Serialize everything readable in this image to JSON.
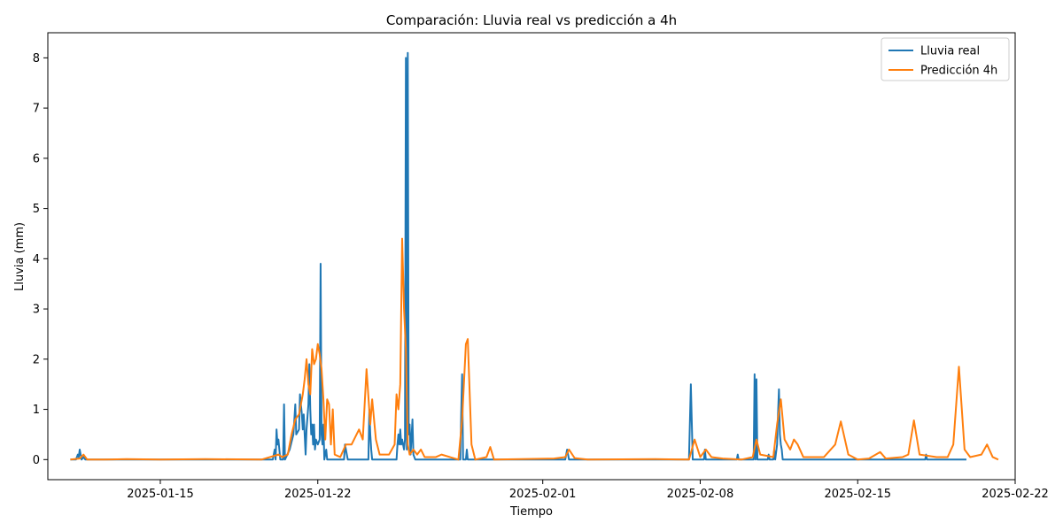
{
  "chart_data": {
    "type": "line",
    "title": "Comparación: Lluvia real vs predicción a 4h",
    "xlabel": "Tiempo",
    "ylabel": "Lluvia (mm)",
    "xlim": [
      "2025-01-10",
      "2025-02-22"
    ],
    "ylim": [
      -0.4,
      8.5
    ],
    "x_ticks": [
      "2025-01-15",
      "2025-01-22",
      "2025-02-01",
      "2025-02-08",
      "2025-02-15",
      "2025-02-22"
    ],
    "y_ticks": [
      0,
      1,
      2,
      3,
      4,
      5,
      6,
      7,
      8
    ],
    "grid": false,
    "legend_position": "top-right",
    "series": [
      {
        "name": "Lluvia real",
        "color": "#1f77b4",
        "points": [
          [
            "2025-01-11 00:00",
            0
          ],
          [
            "2025-01-11 06:00",
            0
          ],
          [
            "2025-01-11 08:00",
            0.1
          ],
          [
            "2025-01-11 09:00",
            0.05
          ],
          [
            "2025-01-11 10:00",
            0.2
          ],
          [
            "2025-01-11 12:00",
            0
          ],
          [
            "2025-01-11 14:00",
            0.05
          ],
          [
            "2025-01-11 16:00",
            0
          ],
          [
            "2025-01-20 00:00",
            0
          ],
          [
            "2025-01-20 02:00",
            0.2
          ],
          [
            "2025-01-20 03:00",
            0
          ],
          [
            "2025-01-20 04:00",
            0.6
          ],
          [
            "2025-01-20 05:00",
            0.3
          ],
          [
            "2025-01-20 06:00",
            0.4
          ],
          [
            "2025-01-20 08:00",
            0
          ],
          [
            "2025-01-20 11:00",
            0
          ],
          [
            "2025-01-20 12:00",
            1.1
          ],
          [
            "2025-01-20 13:00",
            0
          ],
          [
            "2025-01-20 18:00",
            0.2
          ],
          [
            "2025-01-20 22:00",
            0.5
          ],
          [
            "2025-01-21 00:00",
            1.1
          ],
          [
            "2025-01-21 01:00",
            0.5
          ],
          [
            "2025-01-21 04:00",
            0.6
          ],
          [
            "2025-01-21 05:00",
            1.3
          ],
          [
            "2025-01-21 07:00",
            0.9
          ],
          [
            "2025-01-21 08:00",
            0.6
          ],
          [
            "2025-01-21 09:00",
            0.9
          ],
          [
            "2025-01-21 10:00",
            0.5
          ],
          [
            "2025-01-21 11:00",
            0.1
          ],
          [
            "2025-01-21 12:00",
            0.6
          ],
          [
            "2025-01-21 14:00",
            1.1
          ],
          [
            "2025-01-21 15:00",
            1.9
          ],
          [
            "2025-01-21 16:00",
            1.0
          ],
          [
            "2025-01-21 17:00",
            0.5
          ],
          [
            "2025-01-21 18:00",
            0.7
          ],
          [
            "2025-01-21 19:00",
            0.3
          ],
          [
            "2025-01-21 20:00",
            0.7
          ],
          [
            "2025-01-21 21:00",
            0.2
          ],
          [
            "2025-01-21 22:00",
            0.4
          ],
          [
            "2025-01-22 00:00",
            0.3
          ],
          [
            "2025-01-22 02:00",
            0.4
          ],
          [
            "2025-01-22 03:00",
            3.9
          ],
          [
            "2025-01-22 04:00",
            0.5
          ],
          [
            "2025-01-22 05:00",
            0.3
          ],
          [
            "2025-01-22 06:00",
            0.7
          ],
          [
            "2025-01-22 07:00",
            0
          ],
          [
            "2025-01-22 09:00",
            0.2
          ],
          [
            "2025-01-22 10:00",
            0
          ],
          [
            "2025-01-23 04:00",
            0
          ],
          [
            "2025-01-23 05:00",
            0.3
          ],
          [
            "2025-01-23 06:00",
            0.2
          ],
          [
            "2025-01-23 07:00",
            0.1
          ],
          [
            "2025-01-23 08:00",
            0
          ],
          [
            "2025-01-24 06:00",
            0
          ],
          [
            "2025-01-24 07:00",
            1.0
          ],
          [
            "2025-01-24 08:00",
            0.5
          ],
          [
            "2025-01-24 09:00",
            0.2
          ],
          [
            "2025-01-24 10:00",
            0
          ],
          [
            "2025-01-25 12:00",
            0
          ],
          [
            "2025-01-25 13:00",
            0.3
          ],
          [
            "2025-01-25 14:00",
            0.5
          ],
          [
            "2025-01-25 15:00",
            0.3
          ],
          [
            "2025-01-25 16:00",
            0.6
          ],
          [
            "2025-01-25 17:00",
            0.3
          ],
          [
            "2025-01-25 18:00",
            0.4
          ],
          [
            "2025-01-25 19:00",
            0.3
          ],
          [
            "2025-01-25 20:00",
            0.2
          ],
          [
            "2025-01-25 21:00",
            0.4
          ],
          [
            "2025-01-25 22:00",
            8.0
          ],
          [
            "2025-01-25 23:00",
            0.2
          ],
          [
            "2025-01-26 00:00",
            8.1
          ],
          [
            "2025-01-26 01:00",
            0.5
          ],
          [
            "2025-01-26 02:00",
            0.7
          ],
          [
            "2025-01-26 03:00",
            0.1
          ],
          [
            "2025-01-26 05:00",
            0.8
          ],
          [
            "2025-01-26 06:00",
            0.1
          ],
          [
            "2025-01-26 08:00",
            0
          ],
          [
            "2025-01-28 08:00",
            0
          ],
          [
            "2025-01-28 09:00",
            0.9
          ],
          [
            "2025-01-28 10:00",
            1.7
          ],
          [
            "2025-01-28 11:00",
            0
          ],
          [
            "2025-01-28 14:00",
            0
          ],
          [
            "2025-01-28 15:00",
            0.2
          ],
          [
            "2025-01-28 16:00",
            0
          ],
          [
            "2025-02-02 00:00",
            0
          ],
          [
            "2025-02-02 02:00",
            0.2
          ],
          [
            "2025-02-02 04:00",
            0
          ],
          [
            "2025-02-07 12:00",
            0
          ],
          [
            "2025-02-07 14:00",
            1.5
          ],
          [
            "2025-02-07 16:00",
            0
          ],
          [
            "2025-02-08 04:00",
            0
          ],
          [
            "2025-02-08 05:00",
            0.2
          ],
          [
            "2025-02-08 06:00",
            0
          ],
          [
            "2025-02-09 15:00",
            0
          ],
          [
            "2025-02-09 16:00",
            0.1
          ],
          [
            "2025-02-09 17:00",
            0
          ],
          [
            "2025-02-10 09:00",
            0
          ],
          [
            "2025-02-10 10:00",
            1.7
          ],
          [
            "2025-02-10 11:00",
            0
          ],
          [
            "2025-02-10 12:00",
            1.6
          ],
          [
            "2025-02-10 13:00",
            0
          ],
          [
            "2025-02-11 00:00",
            0
          ],
          [
            "2025-02-11 01:00",
            0.1
          ],
          [
            "2025-02-11 02:00",
            0
          ],
          [
            "2025-02-11 06:00",
            0
          ],
          [
            "2025-02-11 07:00",
            0.2
          ],
          [
            "2025-02-11 08:00",
            0
          ],
          [
            "2025-02-11 10:00",
            0.3
          ],
          [
            "2025-02-11 11:00",
            0.9
          ],
          [
            "2025-02-11 12:00",
            1.4
          ],
          [
            "2025-02-11 13:00",
            0.5
          ],
          [
            "2025-02-11 14:00",
            0.3
          ],
          [
            "2025-02-11 15:00",
            0.2
          ],
          [
            "2025-02-11 16:00",
            0
          ],
          [
            "2025-02-18 00:00",
            0
          ],
          [
            "2025-02-18 01:00",
            0.1
          ],
          [
            "2025-02-18 02:00",
            0
          ],
          [
            "2025-02-19 19:00",
            0
          ],
          [
            "2025-02-19 20:00",
            0
          ]
        ]
      },
      {
        "name": "Predicción 4h",
        "color": "#ff7f0e",
        "points": [
          [
            "2025-01-11 00:00",
            0
          ],
          [
            "2025-01-11 10:00",
            0.02
          ],
          [
            "2025-01-11 14:00",
            0.1
          ],
          [
            "2025-01-11 18:00",
            0
          ],
          [
            "2025-01-12 12:00",
            0
          ],
          [
            "2025-01-13 12:00",
            0.01
          ],
          [
            "2025-01-15 00:00",
            0
          ],
          [
            "2025-01-17 00:00",
            0.01
          ],
          [
            "2025-01-19 12:00",
            0
          ],
          [
            "2025-01-20 06:00",
            0.1
          ],
          [
            "2025-01-20 10:00",
            0.05
          ],
          [
            "2025-01-20 16:00",
            0.1
          ],
          [
            "2025-01-20 20:00",
            0.5
          ],
          [
            "2025-01-21 00:00",
            0.8
          ],
          [
            "2025-01-21 04:00",
            0.9
          ],
          [
            "2025-01-21 06:00",
            1.1
          ],
          [
            "2025-01-21 08:00",
            1.3
          ],
          [
            "2025-01-21 10:00",
            1.6
          ],
          [
            "2025-01-21 12:00",
            2.0
          ],
          [
            "2025-01-21 14:00",
            1.5
          ],
          [
            "2025-01-21 16:00",
            1.3
          ],
          [
            "2025-01-21 18:00",
            2.2
          ],
          [
            "2025-01-21 20:00",
            1.9
          ],
          [
            "2025-01-21 22:00",
            2.0
          ],
          [
            "2025-01-22 00:00",
            2.3
          ],
          [
            "2025-01-22 02:00",
            2.1
          ],
          [
            "2025-01-22 04:00",
            1.8
          ],
          [
            "2025-01-22 06:00",
            1.2
          ],
          [
            "2025-01-22 08:00",
            0.4
          ],
          [
            "2025-01-22 10:00",
            1.2
          ],
          [
            "2025-01-22 12:00",
            1.1
          ],
          [
            "2025-01-22 14:00",
            0.3
          ],
          [
            "2025-01-22 16:00",
            1.0
          ],
          [
            "2025-01-22 18:00",
            0.1
          ],
          [
            "2025-01-23 00:00",
            0.05
          ],
          [
            "2025-01-23 06:00",
            0.3
          ],
          [
            "2025-01-23 12:00",
            0.3
          ],
          [
            "2025-01-23 20:00",
            0.6
          ],
          [
            "2025-01-24 00:00",
            0.4
          ],
          [
            "2025-01-24 04:00",
            1.8
          ],
          [
            "2025-01-24 08:00",
            0.7
          ],
          [
            "2025-01-24 10:00",
            1.2
          ],
          [
            "2025-01-24 14:00",
            0.4
          ],
          [
            "2025-01-24 18:00",
            0.1
          ],
          [
            "2025-01-25 04:00",
            0.1
          ],
          [
            "2025-01-25 10:00",
            0.3
          ],
          [
            "2025-01-25 12:00",
            1.3
          ],
          [
            "2025-01-25 14:00",
            1.0
          ],
          [
            "2025-01-25 16:00",
            1.5
          ],
          [
            "2025-01-25 18:00",
            4.4
          ],
          [
            "2025-01-25 20:00",
            3.0
          ],
          [
            "2025-01-25 22:00",
            2.2
          ],
          [
            "2025-01-26 00:00",
            0.3
          ],
          [
            "2025-01-26 02:00",
            0.1
          ],
          [
            "2025-01-26 06:00",
            0.2
          ],
          [
            "2025-01-26 10:00",
            0.1
          ],
          [
            "2025-01-26 14:00",
            0.2
          ],
          [
            "2025-01-26 18:00",
            0.05
          ],
          [
            "2025-01-27 06:00",
            0.05
          ],
          [
            "2025-01-27 12:00",
            0.1
          ],
          [
            "2025-01-28 06:00",
            0
          ],
          [
            "2025-01-28 10:00",
            0.8
          ],
          [
            "2025-01-28 14:00",
            2.3
          ],
          [
            "2025-01-28 16:00",
            2.4
          ],
          [
            "2025-01-28 20:00",
            0.3
          ],
          [
            "2025-01-29 00:00",
            0
          ],
          [
            "2025-01-29 12:00",
            0.05
          ],
          [
            "2025-01-29 16:00",
            0.25
          ],
          [
            "2025-01-29 20:00",
            0
          ],
          [
            "2025-02-01 12:00",
            0.02
          ],
          [
            "2025-02-02 00:00",
            0.05
          ],
          [
            "2025-02-02 04:00",
            0.2
          ],
          [
            "2025-02-02 10:00",
            0.03
          ],
          [
            "2025-02-03 00:00",
            0
          ],
          [
            "2025-02-06 00:00",
            0.01
          ],
          [
            "2025-02-07 12:00",
            0
          ],
          [
            "2025-02-07 18:00",
            0.4
          ],
          [
            "2025-02-08 00:00",
            0.05
          ],
          [
            "2025-02-08 06:00",
            0.2
          ],
          [
            "2025-02-08 12:00",
            0.05
          ],
          [
            "2025-02-09 00:00",
            0.02
          ],
          [
            "2025-02-09 20:00",
            0
          ],
          [
            "2025-02-10 08:00",
            0.05
          ],
          [
            "2025-02-10 12:00",
            0.4
          ],
          [
            "2025-02-10 16:00",
            0.1
          ],
          [
            "2025-02-11 06:00",
            0.05
          ],
          [
            "2025-02-11 10:00",
            0.7
          ],
          [
            "2025-02-11 14:00",
            1.2
          ],
          [
            "2025-02-11 18:00",
            0.4
          ],
          [
            "2025-02-12 00:00",
            0.2
          ],
          [
            "2025-02-12 04:00",
            0.4
          ],
          [
            "2025-02-12 08:00",
            0.3
          ],
          [
            "2025-02-12 14:00",
            0.05
          ],
          [
            "2025-02-13 12:00",
            0.05
          ],
          [
            "2025-02-14 00:00",
            0.3
          ],
          [
            "2025-02-14 06:00",
            0.76
          ],
          [
            "2025-02-14 14:00",
            0.1
          ],
          [
            "2025-02-15 00:00",
            0
          ],
          [
            "2025-02-15 12:00",
            0.02
          ],
          [
            "2025-02-16 00:00",
            0.15
          ],
          [
            "2025-02-16 06:00",
            0.02
          ],
          [
            "2025-02-17 00:00",
            0.05
          ],
          [
            "2025-02-17 06:00",
            0.1
          ],
          [
            "2025-02-17 12:00",
            0.78
          ],
          [
            "2025-02-17 18:00",
            0.1
          ],
          [
            "2025-02-18 12:00",
            0.05
          ],
          [
            "2025-02-19 00:00",
            0.05
          ],
          [
            "2025-02-19 06:00",
            0.3
          ],
          [
            "2025-02-19 12:00",
            1.85
          ],
          [
            "2025-02-19 18:00",
            0.2
          ],
          [
            "2025-02-20 00:00",
            0.05
          ],
          [
            "2025-02-20 12:00",
            0.1
          ],
          [
            "2025-02-20 18:00",
            0.3
          ],
          [
            "2025-02-21 00:00",
            0.05
          ],
          [
            "2025-02-21 06:00",
            0
          ]
        ]
      }
    ]
  }
}
